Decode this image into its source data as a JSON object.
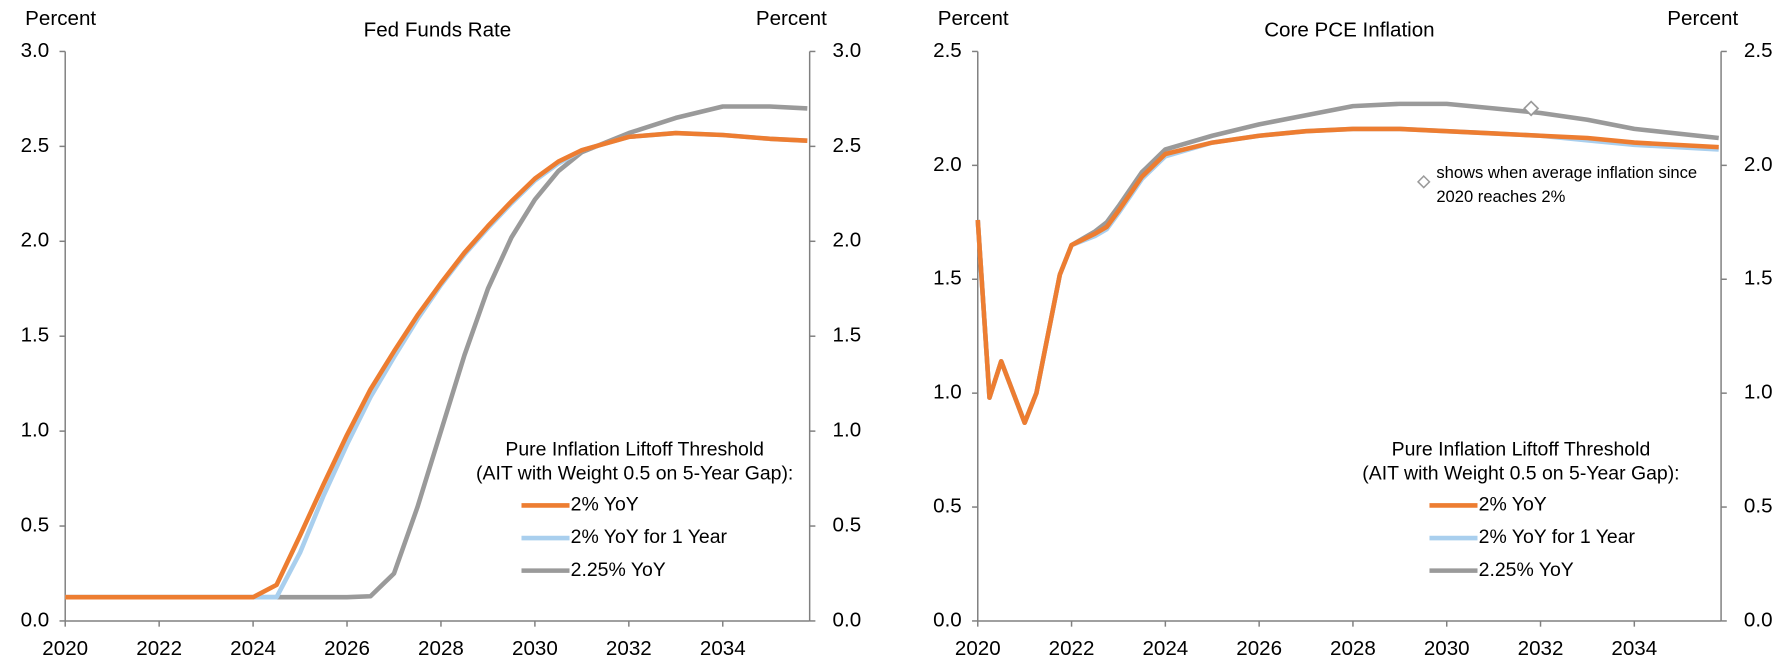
{
  "chart_data": [
    {
      "type": "line",
      "title": "Fed Funds Rate",
      "ylabel": "Percent",
      "y2label": "Percent",
      "x": [
        2020,
        2021,
        2022,
        2023,
        2024,
        2024.5,
        2025,
        2025.5,
        2026,
        2026.5,
        2027,
        2027.5,
        2028,
        2028.5,
        2029,
        2029.5,
        2030,
        2030.5,
        2031,
        2032,
        2033,
        2034,
        2035,
        2035.8
      ],
      "series": [
        {
          "name": "2% YoY",
          "color": "#ed7d31",
          "values": [
            0.125,
            0.125,
            0.125,
            0.125,
            0.125,
            0.19,
            0.45,
            0.72,
            0.98,
            1.22,
            1.42,
            1.61,
            1.78,
            1.94,
            2.08,
            2.21,
            2.33,
            2.42,
            2.48,
            2.55,
            2.57,
            2.56,
            2.54,
            2.53
          ]
        },
        {
          "name": "2% YoY for 1 Year",
          "color": "#a9cfee",
          "values": [
            0.125,
            0.125,
            0.125,
            0.125,
            0.125,
            0.125,
            0.36,
            0.66,
            0.93,
            1.18,
            1.39,
            1.59,
            1.77,
            1.93,
            2.07,
            2.2,
            2.32,
            2.41,
            2.48,
            2.55,
            2.57,
            2.56,
            2.54,
            2.53
          ]
        },
        {
          "name": "2.25% YoY",
          "color": "#9a9a9a",
          "values": [
            0.125,
            0.125,
            0.125,
            0.125,
            0.125,
            0.125,
            0.125,
            0.125,
            0.125,
            0.13,
            0.25,
            0.6,
            1.0,
            1.4,
            1.75,
            2.02,
            2.22,
            2.37,
            2.47,
            2.57,
            2.65,
            2.71,
            2.71,
            2.7
          ]
        }
      ],
      "legend_title": [
        "Pure Inflation Liftoff Threshold",
        "(AIT with Weight 0.5 on 5-Year Gap):"
      ],
      "xlim": [
        2020,
        2035.85
      ],
      "xticks": [
        2020,
        2022,
        2024,
        2026,
        2028,
        2030,
        2032,
        2034
      ],
      "ylim": [
        0,
        3
      ],
      "yticks": [
        {
          "value": 0,
          "label": "0.0"
        },
        {
          "value": 0.5,
          "label": "0.5"
        },
        {
          "value": 1,
          "label": "1.0"
        },
        {
          "value": 1.5,
          "label": "1.5"
        },
        {
          "value": 2,
          "label": "2.0"
        },
        {
          "value": 2.5,
          "label": "2.5"
        },
        {
          "value": 3,
          "label": "3.0"
        }
      ],
      "y2lim": [
        0,
        3
      ],
      "y2ticks": [
        {
          "value": 0,
          "label": "0.0"
        },
        {
          "value": 0.5,
          "label": "0.5"
        },
        {
          "value": 1,
          "label": "1.0"
        },
        {
          "value": 1.5,
          "label": "1.5"
        },
        {
          "value": 2,
          "label": "2.0"
        },
        {
          "value": 2.5,
          "label": "2.5"
        },
        {
          "value": 3,
          "label": "3.0"
        }
      ]
    },
    {
      "type": "line",
      "title": "Core PCE Inflation",
      "ylabel": "Percent",
      "y2label": "Percent",
      "x": [
        2020,
        2020.25,
        2020.5,
        2021,
        2021.25,
        2021.75,
        2022,
        2022.5,
        2022.75,
        2023,
        2023.5,
        2024,
        2025,
        2026,
        2027,
        2028,
        2029,
        2030,
        2031,
        2032,
        2033,
        2034,
        2035.8
      ],
      "series": [
        {
          "name": "2% YoY",
          "color": "#ed7d31",
          "values": [
            1.76,
            0.98,
            1.14,
            0.87,
            1.0,
            1.52,
            1.65,
            1.7,
            1.73,
            1.8,
            1.95,
            2.05,
            2.1,
            2.13,
            2.15,
            2.16,
            2.16,
            2.15,
            2.14,
            2.13,
            2.12,
            2.1,
            2.08
          ]
        },
        {
          "name": "2% YoY for 1 Year",
          "color": "#a9cfee",
          "values": [
            1.76,
            0.98,
            1.14,
            0.87,
            1.0,
            1.52,
            1.65,
            1.69,
            1.72,
            1.79,
            1.94,
            2.04,
            2.1,
            2.13,
            2.15,
            2.16,
            2.16,
            2.15,
            2.14,
            2.13,
            2.11,
            2.09,
            2.07
          ]
        },
        {
          "name": "2.25% YoY",
          "color": "#9a9a9a",
          "values": [
            1.76,
            0.98,
            1.14,
            0.87,
            1.0,
            1.52,
            1.65,
            1.71,
            1.75,
            1.82,
            1.97,
            2.07,
            2.13,
            2.18,
            2.22,
            2.26,
            2.27,
            2.27,
            2.25,
            2.23,
            2.2,
            2.16,
            2.12
          ]
        }
      ],
      "marker": {
        "x": 2031.8,
        "y": 2.25
      },
      "annotation": [
        "shows when average inflation since",
        "2020 reaches 2%"
      ],
      "legend_title": [
        "Pure Inflation Liftoff Threshold",
        "(AIT with Weight 0.5 on 5-Year Gap):"
      ],
      "xlim": [
        2020,
        2035.85
      ],
      "xticks": [
        2020,
        2022,
        2024,
        2026,
        2028,
        2030,
        2032,
        2034
      ],
      "ylim": [
        0,
        2.5
      ],
      "yticks": [
        {
          "value": 0,
          "label": "0.0"
        },
        {
          "value": 0.5,
          "label": "0.5"
        },
        {
          "value": 1,
          "label": "1.0"
        },
        {
          "value": 1.5,
          "label": "1.5"
        },
        {
          "value": 2,
          "label": "2.0"
        },
        {
          "value": 2.5,
          "label": "2.5"
        }
      ],
      "y2lim": [
        0,
        2.5
      ],
      "y2ticks": [
        {
          "value": 0,
          "label": "0.0"
        },
        {
          "value": 0.5,
          "label": "0.5"
        },
        {
          "value": 1,
          "label": "1.0"
        },
        {
          "value": 1.5,
          "label": "1.5"
        },
        {
          "value": 2,
          "label": "2.0"
        },
        {
          "value": 2.5,
          "label": "2.5"
        }
      ]
    }
  ]
}
